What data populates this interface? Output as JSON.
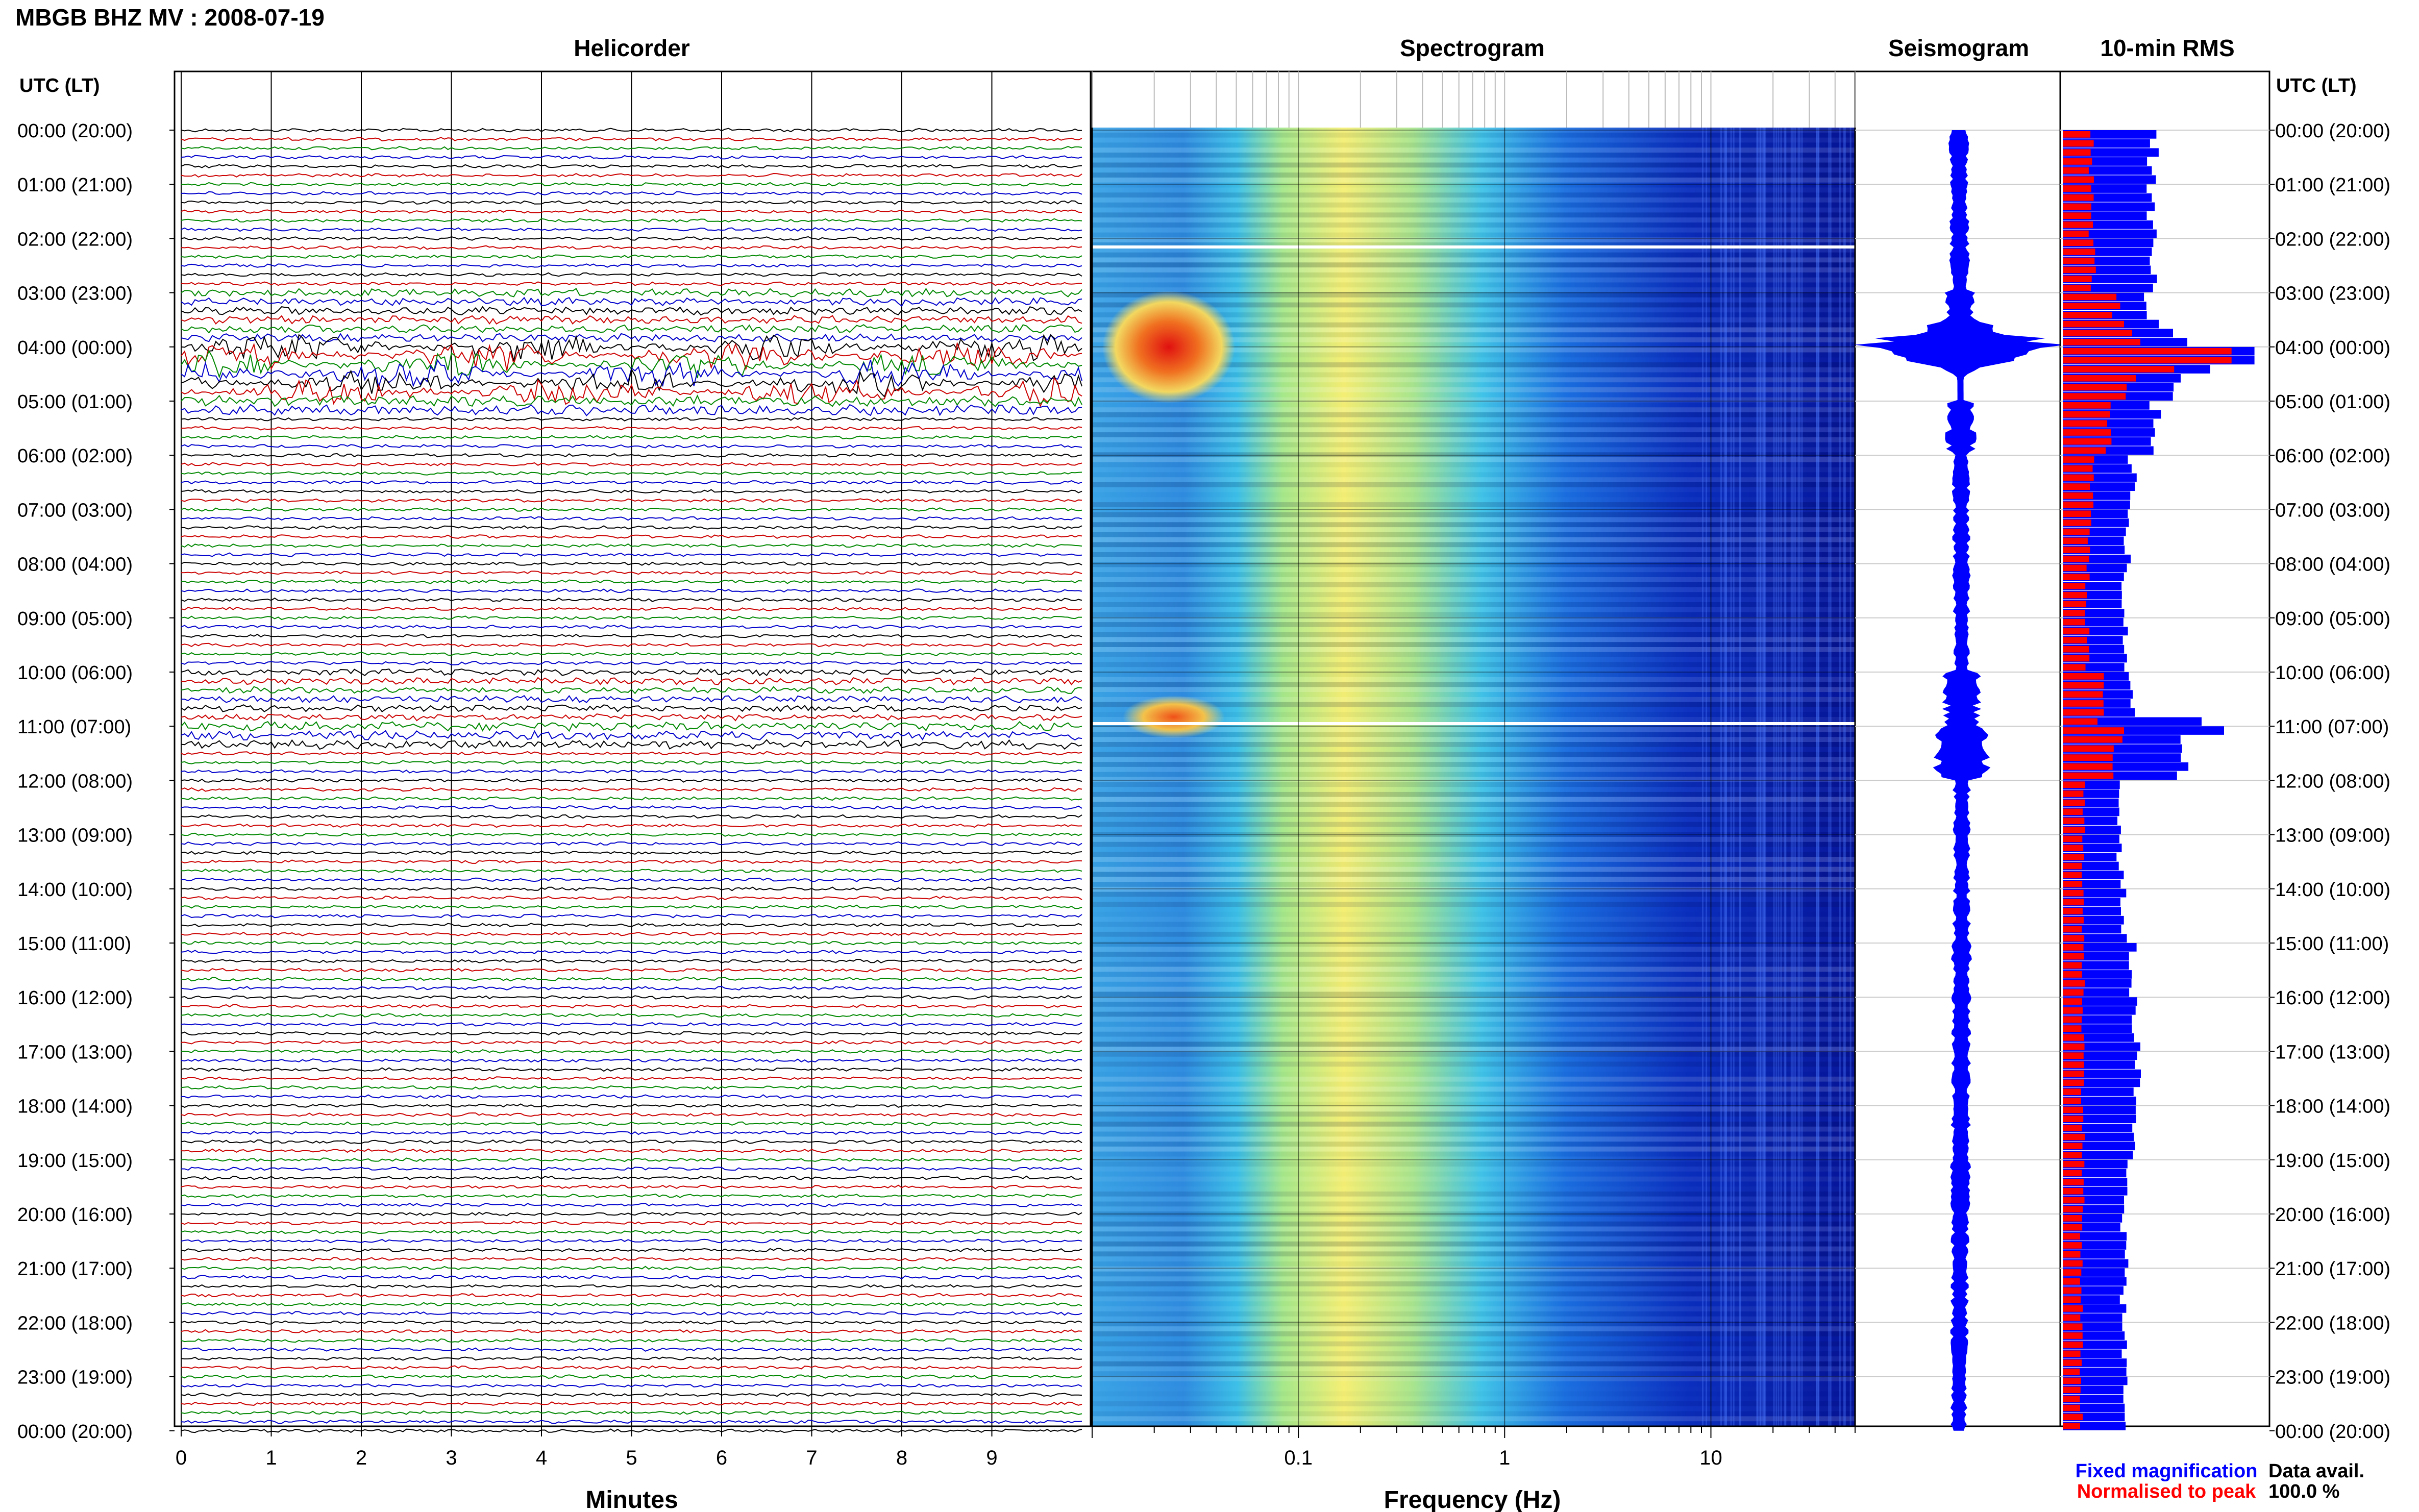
{
  "title": "MBGB BHZ MV : 2008-07-19",
  "panels": {
    "helicorder": "Helicorder",
    "spectrogram": "Spectrogram",
    "seismogram": "Seismogram",
    "rms": "10-min RMS"
  },
  "utc_header_left": "UTC (LT)",
  "utc_header_right": "UTC (LT)",
  "time_labels": [
    "00:00 (20:00)",
    "01:00 (21:00)",
    "02:00 (22:00)",
    "03:00 (23:00)",
    "04:00 (00:00)",
    "05:00 (01:00)",
    "06:00 (02:00)",
    "07:00 (03:00)",
    "08:00 (04:00)",
    "09:00 (05:00)",
    "10:00 (06:00)",
    "11:00 (07:00)",
    "12:00 (08:00)",
    "13:00 (09:00)",
    "14:00 (10:00)",
    "15:00 (11:00)",
    "16:00 (12:00)",
    "17:00 (13:00)",
    "18:00 (14:00)",
    "19:00 (15:00)",
    "20:00 (16:00)",
    "21:00 (17:00)",
    "22:00 (18:00)",
    "23:00 (19:00)",
    "00:00 (20:00)"
  ],
  "minute_ticks": [
    "0",
    "1",
    "2",
    "3",
    "4",
    "5",
    "6",
    "7",
    "8",
    "9"
  ],
  "minutes_label": "Minutes",
  "freq_ticks": [
    "0.1",
    "1",
    "10"
  ],
  "freq_label": "Frequency (Hz)",
  "legend": {
    "fixed": "Fixed magnification",
    "normalised": "Normalised to peak",
    "fixed_color": "#0000ff",
    "normalised_color": "#ff0000"
  },
  "data_avail_label": "Data avail.",
  "data_avail_value": "100.0 %",
  "colors": {
    "trace_cycle": [
      "#000000",
      "#cc0000",
      "#008800",
      "#0000cc"
    ],
    "rms_fixed": "#0000ff",
    "rms_norm": "#ff0000",
    "seismogram": "#0000ff"
  },
  "chart_data": {
    "type": "heatmap",
    "hours_utc": [
      0,
      1,
      2,
      3,
      4,
      5,
      6,
      7,
      8,
      9,
      10,
      11,
      12,
      13,
      14,
      15,
      16,
      17,
      18,
      19,
      20,
      21,
      22,
      23
    ],
    "rms_fixed_relative": [
      0.44,
      0.44,
      0.44,
      0.4,
      0.98,
      0.45,
      0.34,
      0.32,
      0.3,
      0.3,
      0.34,
      0.6,
      0.28,
      0.28,
      0.3,
      0.34,
      0.36,
      0.36,
      0.34,
      0.32,
      0.3,
      0.3,
      0.3,
      0.3
    ],
    "rms_normalised_relative": [
      0.14,
      0.14,
      0.15,
      0.26,
      0.88,
      0.22,
      0.14,
      0.13,
      0.12,
      0.12,
      0.2,
      0.27,
      0.1,
      0.1,
      0.1,
      0.1,
      0.1,
      0.1,
      0.1,
      0.1,
      0.09,
      0.09,
      0.09,
      0.09
    ],
    "seismogram_amplitude_relative": [
      0.08,
      0.08,
      0.08,
      0.12,
      0.85,
      0.12,
      0.07,
      0.07,
      0.07,
      0.07,
      0.15,
      0.25,
      0.07,
      0.07,
      0.07,
      0.08,
      0.08,
      0.08,
      0.08,
      0.08,
      0.07,
      0.07,
      0.07,
      0.07
    ],
    "helicorder_x_range_minutes": [
      0,
      10
    ],
    "spectrogram_freq_range_hz": [
      0.01,
      50
    ],
    "spectrogram_scale": "log"
  }
}
